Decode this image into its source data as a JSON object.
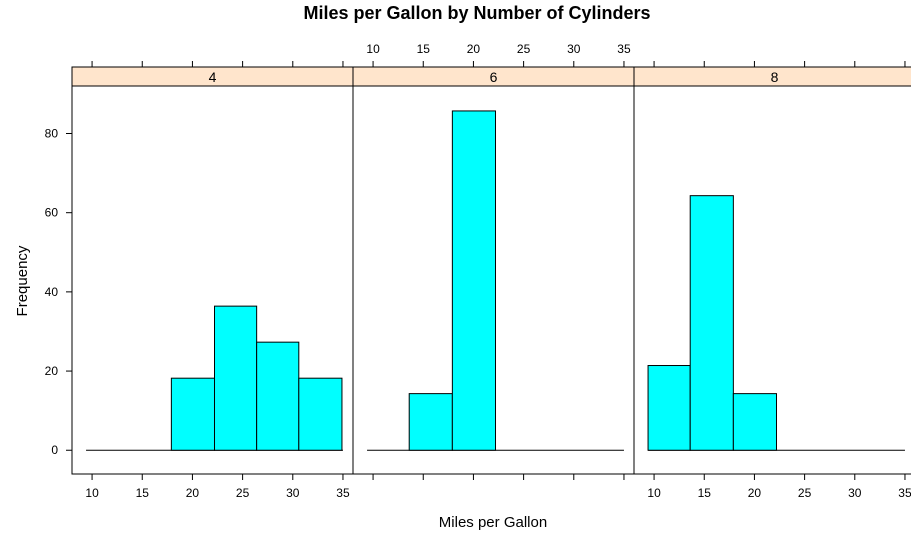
{
  "chart_data": {
    "type": "bar",
    "title": "Miles per Gallon by Number of Cylinders",
    "xlabel": "Miles per Gallon",
    "ylabel": "Frequency",
    "xlim": [
      8,
      36
    ],
    "ylim": [
      -6,
      92
    ],
    "x_ticks": [
      10,
      15,
      20,
      25,
      30,
      35
    ],
    "y_ticks": [
      0,
      20,
      40,
      60,
      80
    ],
    "bar_color": "#00ffff",
    "strip_color": "#ffe5cc",
    "panels": [
      {
        "name": "4",
        "range": [
          9.4,
          35.0
        ],
        "bins": [
          {
            "x0": 17.9,
            "x1": 22.2,
            "value": 18.2
          },
          {
            "x0": 22.2,
            "x1": 26.4,
            "value": 36.4
          },
          {
            "x0": 26.4,
            "x1": 30.6,
            "value": 27.3
          },
          {
            "x0": 30.6,
            "x1": 34.9,
            "value": 18.2
          }
        ]
      },
      {
        "name": "6",
        "range": [
          9.4,
          35.0
        ],
        "bins": [
          {
            "x0": 13.6,
            "x1": 17.9,
            "value": 14.3
          },
          {
            "x0": 17.9,
            "x1": 22.2,
            "value": 85.7
          }
        ]
      },
      {
        "name": "8",
        "range": [
          9.4,
          35.0
        ],
        "bins": [
          {
            "x0": 9.4,
            "x1": 13.6,
            "value": 21.4
          },
          {
            "x0": 13.6,
            "x1": 17.9,
            "value": 64.3
          },
          {
            "x0": 17.9,
            "x1": 22.2,
            "value": 14.3
          }
        ]
      }
    ]
  }
}
